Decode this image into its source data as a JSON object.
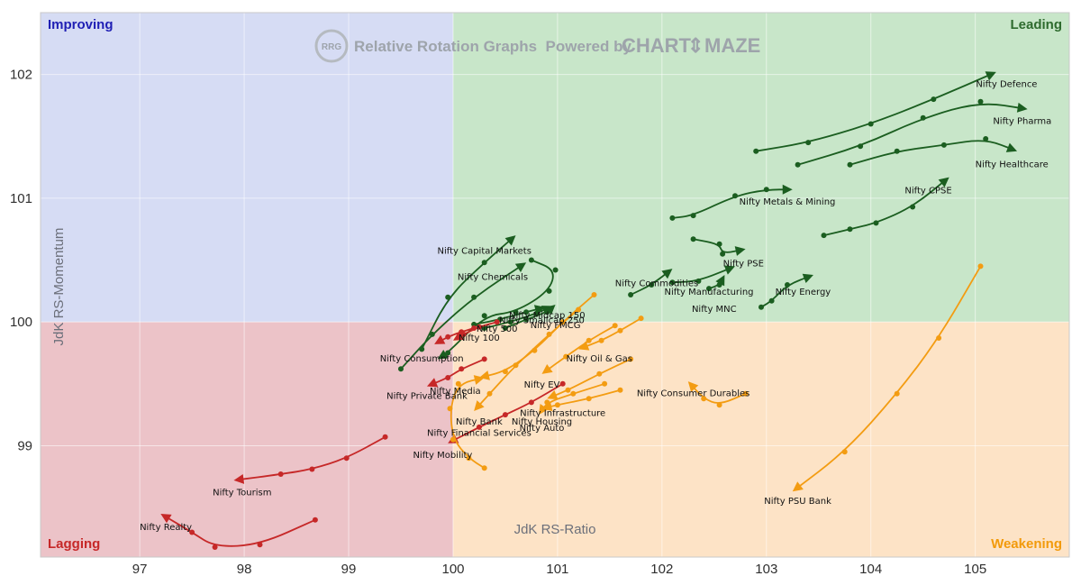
{
  "chart_data": {
    "type": "scatter",
    "title": "",
    "watermark": {
      "badge": "RRG",
      "text": "Relative Rotation Graphs  Powered by",
      "brand_left": "CHART",
      "brand_right": "MAZE"
    },
    "xlabel": "JdK RS-Ratio",
    "ylabel": "JdK RS-Momentum",
    "xlim": [
      96.05,
      105.9
    ],
    "ylim": [
      98.1,
      102.5
    ],
    "x_ticks": [
      97,
      98,
      99,
      100,
      101,
      102,
      103,
      104,
      105
    ],
    "y_ticks": [
      99,
      100,
      101,
      102
    ],
    "grid": true,
    "quadrants": [
      {
        "name": "Improving",
        "color": "#1f1fb4"
      },
      {
        "name": "Leading",
        "color": "#2e6b2e"
      },
      {
        "name": "Lagging",
        "color": "#c62828"
      },
      {
        "name": "Weakening",
        "color": "#f29a0b"
      }
    ],
    "quadrant_fills": {
      "improving": "#d6dcf4",
      "leading": "#c8e6c9",
      "lagging": "#ecc3c8",
      "weakening": "#fde3c6"
    },
    "colors": {
      "leading": "#1b5e20",
      "weakening": "#f39c12",
      "lagging": "#c62828"
    },
    "series": [
      {
        "name": "Nifty Defence",
        "group": "leading",
        "points": [
          [
            102.9,
            101.38
          ],
          [
            103.4,
            101.45
          ],
          [
            104.0,
            101.6
          ],
          [
            104.6,
            101.8
          ],
          [
            105.2,
            102.02
          ]
        ]
      },
      {
        "name": "Nifty Pharma",
        "group": "leading",
        "points": [
          [
            103.3,
            101.27
          ],
          [
            103.9,
            101.42
          ],
          [
            104.5,
            101.65
          ],
          [
            105.05,
            101.78
          ],
          [
            105.5,
            101.72
          ]
        ]
      },
      {
        "name": "Nifty Healthcare",
        "group": "leading",
        "points": [
          [
            103.8,
            101.27
          ],
          [
            104.25,
            101.38
          ],
          [
            104.7,
            101.43
          ],
          [
            105.1,
            101.48
          ],
          [
            105.4,
            101.38
          ]
        ]
      },
      {
        "name": "Nifty CPSE",
        "group": "leading",
        "points": [
          [
            103.55,
            100.7
          ],
          [
            103.8,
            100.75
          ],
          [
            104.05,
            100.8
          ],
          [
            104.4,
            100.93
          ],
          [
            104.75,
            101.17
          ]
        ]
      },
      {
        "name": "Nifty Metals & Mining",
        "group": "leading",
        "points": [
          [
            102.1,
            100.84
          ],
          [
            102.3,
            100.86
          ],
          [
            102.7,
            101.02
          ],
          [
            103.0,
            101.07
          ],
          [
            103.25,
            101.07
          ]
        ]
      },
      {
        "name": "Nifty PSE",
        "group": "leading",
        "points": [
          [
            102.3,
            100.67
          ],
          [
            102.55,
            100.63
          ],
          [
            102.58,
            100.55
          ],
          [
            102.8,
            100.59
          ]
        ]
      },
      {
        "name": "Nifty Commodities",
        "group": "leading",
        "points": [
          [
            101.7,
            100.22
          ],
          [
            101.9,
            100.3
          ],
          [
            102.1,
            100.43
          ]
        ]
      },
      {
        "name": "Nifty Manufacturing",
        "group": "leading",
        "points": [
          [
            102.1,
            100.32
          ],
          [
            102.35,
            100.33
          ],
          [
            102.7,
            100.45
          ]
        ]
      },
      {
        "name": "Nifty Energy",
        "group": "leading",
        "points": [
          [
            102.95,
            100.12
          ],
          [
            103.05,
            100.17
          ],
          [
            103.2,
            100.3
          ],
          [
            103.45,
            100.38
          ]
        ]
      },
      {
        "name": "Nifty MNC",
        "group": "leading",
        "points": [
          [
            102.45,
            100.27
          ],
          [
            102.55,
            100.3
          ],
          [
            102.6,
            100.38
          ]
        ]
      },
      {
        "name": "Nifty Capital Markets",
        "group": "leading",
        "points": [
          [
            99.7,
            99.78
          ],
          [
            99.95,
            100.2
          ],
          [
            100.3,
            100.48
          ],
          [
            100.6,
            100.7
          ]
        ]
      },
      {
        "name": "Nifty Chemicals",
        "group": "leading",
        "points": [
          [
            99.5,
            99.62
          ],
          [
            99.8,
            99.9
          ],
          [
            100.2,
            100.2
          ],
          [
            100.7,
            100.48
          ]
        ]
      },
      {
        "name": "Nifty Consumption",
        "group": "leading",
        "points": [
          [
            100.75,
            100.5
          ],
          [
            100.98,
            100.42
          ],
          [
            100.92,
            100.25
          ],
          [
            100.6,
            100.08
          ],
          [
            100.3,
            100.05
          ],
          [
            99.95,
            99.75
          ],
          [
            99.85,
            99.7
          ]
        ]
      },
      {
        "name": "Nifty Midcap 150",
        "group": "leading",
        "points": [
          [
            100.2,
            99.98
          ],
          [
            100.45,
            100.02
          ],
          [
            100.7,
            100.08
          ],
          [
            100.88,
            100.12
          ]
        ]
      },
      {
        "name": "Nifty Smallcap 250",
        "group": "leading",
        "points": [
          [
            100.3,
            99.95
          ],
          [
            100.55,
            100.0
          ],
          [
            100.8,
            100.07
          ],
          [
            100.95,
            100.13
          ]
        ]
      },
      {
        "name": "Nifty FMCG",
        "group": "leading",
        "points": [
          [
            100.5,
            99.95
          ],
          [
            100.7,
            100.02
          ],
          [
            100.9,
            100.08
          ],
          [
            100.98,
            100.14
          ]
        ]
      },
      {
        "name": "Nifty 100",
        "group": "lagging",
        "points": [
          [
            100.2,
            99.95
          ],
          [
            100.08,
            99.92
          ],
          [
            99.95,
            99.88
          ],
          [
            99.82,
            99.82
          ]
        ]
      },
      {
        "name": "Nifty 500",
        "group": "lagging",
        "points": [
          [
            100.42,
            100.0
          ],
          [
            100.25,
            99.96
          ],
          [
            100.1,
            99.9
          ],
          [
            100.0,
            99.85
          ]
        ]
      },
      {
        "name": "Nifty Private Bank",
        "group": "lagging",
        "points": [
          [
            100.3,
            99.7
          ],
          [
            100.08,
            99.62
          ],
          [
            99.95,
            99.55
          ],
          [
            99.75,
            99.48
          ]
        ]
      },
      {
        "name": "Nifty Tourism",
        "group": "lagging",
        "points": [
          [
            99.35,
            99.07
          ],
          [
            98.98,
            98.9
          ],
          [
            98.65,
            98.81
          ],
          [
            98.35,
            98.77
          ],
          [
            97.9,
            98.72
          ]
        ]
      },
      {
        "name": "Nifty Realty",
        "group": "lagging",
        "points": [
          [
            98.68,
            98.4
          ],
          [
            98.15,
            98.2
          ],
          [
            97.72,
            98.18
          ],
          [
            97.5,
            98.3
          ],
          [
            97.2,
            98.45
          ]
        ]
      },
      {
        "name": "Nifty Mobility",
        "group": "lagging",
        "points": [
          [
            101.05,
            99.5
          ],
          [
            100.75,
            99.35
          ],
          [
            100.5,
            99.25
          ],
          [
            100.25,
            99.15
          ],
          [
            99.95,
            99.02
          ]
        ]
      },
      {
        "name": "Nifty Oil & Gas",
        "group": "weakening",
        "points": [
          [
            101.8,
            100.03
          ],
          [
            101.6,
            99.93
          ],
          [
            101.42,
            99.85
          ],
          [
            101.2,
            99.78
          ]
        ]
      },
      {
        "name": "Nifty EV",
        "group": "weakening",
        "points": [
          [
            101.55,
            99.97
          ],
          [
            101.3,
            99.85
          ],
          [
            101.08,
            99.72
          ],
          [
            100.85,
            99.58
          ]
        ]
      },
      {
        "name": "Nifty Media",
        "group": "weakening",
        "points": [
          [
            101.35,
            100.22
          ],
          [
            101.05,
            100.0
          ],
          [
            100.78,
            99.77
          ],
          [
            100.5,
            99.6
          ],
          [
            100.25,
            99.55
          ]
        ]
      },
      {
        "name": "Nifty Bank",
        "group": "weakening",
        "points": [
          [
            101.2,
            100.1
          ],
          [
            100.92,
            99.9
          ],
          [
            100.6,
            99.65
          ],
          [
            100.35,
            99.42
          ],
          [
            100.2,
            99.28
          ]
        ]
      },
      {
        "name": "Nifty Infrastructure",
        "group": "weakening",
        "points": [
          [
            101.7,
            99.7
          ],
          [
            101.4,
            99.58
          ],
          [
            101.1,
            99.45
          ],
          [
            100.9,
            99.38
          ]
        ]
      },
      {
        "name": "Nifty Housing",
        "group": "weakening",
        "points": [
          [
            101.6,
            99.45
          ],
          [
            101.3,
            99.38
          ],
          [
            101.0,
            99.33
          ],
          [
            100.85,
            99.3
          ]
        ]
      },
      {
        "name": "Nifty Auto",
        "group": "weakening",
        "points": [
          [
            101.45,
            99.5
          ],
          [
            101.15,
            99.42
          ],
          [
            100.9,
            99.35
          ],
          [
            100.82,
            99.25
          ]
        ]
      },
      {
        "name": "Nifty Financial Services",
        "group": "weakening",
        "points": [
          [
            100.3,
            98.82
          ],
          [
            100.15,
            98.9
          ],
          [
            100.0,
            99.05
          ],
          [
            99.97,
            99.3
          ],
          [
            100.05,
            99.5
          ],
          [
            100.3,
            99.55
          ]
        ]
      },
      {
        "name": "Nifty Consumer Durables",
        "group": "weakening",
        "points": [
          [
            102.8,
            99.42
          ],
          [
            102.55,
            99.33
          ],
          [
            102.4,
            99.38
          ],
          [
            102.25,
            99.52
          ]
        ]
      },
      {
        "name": "Nifty PSU Bank",
        "group": "weakening",
        "points": [
          [
            105.05,
            100.45
          ],
          [
            104.65,
            99.87
          ],
          [
            104.25,
            99.42
          ],
          [
            103.75,
            98.95
          ],
          [
            103.25,
            98.63
          ]
        ]
      }
    ],
    "labels": [
      {
        "text": "Nifty Defence",
        "x": 105.3,
        "y": 101.9
      },
      {
        "text": "Nifty Pharma",
        "x": 105.45,
        "y": 101.6
      },
      {
        "text": "Nifty Healthcare",
        "x": 105.35,
        "y": 101.25
      },
      {
        "text": "Nifty CPSE",
        "x": 104.55,
        "y": 101.04
      },
      {
        "text": "Nifty Metals & Mining",
        "x": 103.2,
        "y": 100.95
      },
      {
        "text": "Nifty PSE",
        "x": 102.78,
        "y": 100.45
      },
      {
        "text": "Nifty Commodities",
        "x": 101.95,
        "y": 100.29
      },
      {
        "text": "Nifty Manufacturing",
        "x": 102.45,
        "y": 100.22
      },
      {
        "text": "Nifty Energy",
        "x": 103.35,
        "y": 100.22
      },
      {
        "text": "Nifty MNC",
        "x": 102.5,
        "y": 100.08
      },
      {
        "text": "Nifty Capital Markets",
        "x": 100.3,
        "y": 100.55
      },
      {
        "text": "Nifty Chemicals",
        "x": 100.38,
        "y": 100.34
      },
      {
        "text": "Nifty Midcap 150",
        "x": 100.9,
        "y": 100.03
      },
      {
        "text": "Nifty Smallcap 250",
        "x": 100.85,
        "y": 99.99
      },
      {
        "text": "Nifty FMCG",
        "x": 100.98,
        "y": 99.95
      },
      {
        "text": "Nifty 500",
        "x": 100.42,
        "y": 99.92
      },
      {
        "text": "Nifty 100",
        "x": 100.25,
        "y": 99.85
      },
      {
        "text": "Nifty Consumption",
        "x": 99.7,
        "y": 99.68
      },
      {
        "text": "Nifty Media",
        "x": 100.02,
        "y": 99.42
      },
      {
        "text": "Nifty Private Bank",
        "x": 99.75,
        "y": 99.38
      },
      {
        "text": "Nifty EV",
        "x": 100.85,
        "y": 99.47
      },
      {
        "text": "Nifty Oil & Gas",
        "x": 101.4,
        "y": 99.68
      },
      {
        "text": "Nifty Infrastructure",
        "x": 101.05,
        "y": 99.24
      },
      {
        "text": "Nifty Bank",
        "x": 100.25,
        "y": 99.17
      },
      {
        "text": "Nifty Housing",
        "x": 100.85,
        "y": 99.17
      },
      {
        "text": "Nifty Auto",
        "x": 100.85,
        "y": 99.12
      },
      {
        "text": "Nifty Financial Services",
        "x": 100.25,
        "y": 99.08
      },
      {
        "text": "Nifty Mobility",
        "x": 99.9,
        "y": 98.9
      },
      {
        "text": "Nifty Tourism",
        "x": 97.98,
        "y": 98.6
      },
      {
        "text": "Nifty Realty",
        "x": 97.25,
        "y": 98.32
      },
      {
        "text": "Nifty Consumer Durables",
        "x": 102.3,
        "y": 99.4
      },
      {
        "text": "Nifty PSU Bank",
        "x": 103.3,
        "y": 98.53
      }
    ]
  }
}
